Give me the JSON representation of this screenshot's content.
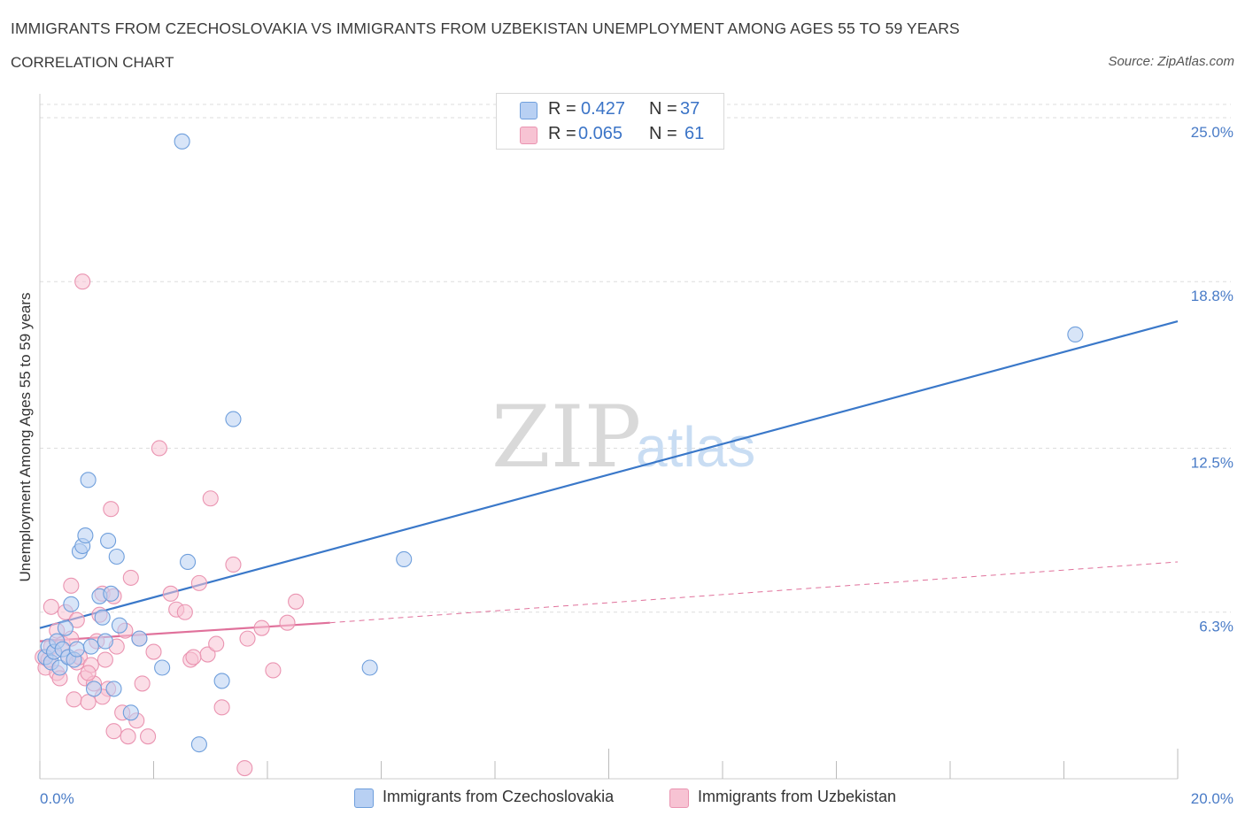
{
  "header": {
    "title": "IMMIGRANTS FROM CZECHOSLOVAKIA VS IMMIGRANTS FROM UZBEKISTAN UNEMPLOYMENT AMONG AGES 55 TO 59 YEARS",
    "subtitle": "CORRELATION CHART",
    "source": "Source: ZipAtlas.com"
  },
  "watermark": "ZIPatlas",
  "legend": {
    "r_label": "R =",
    "n_label": "N =",
    "series_a": {
      "r": "0.427",
      "n": "37"
    },
    "series_b": {
      "r": "0.065",
      "n": "61"
    }
  },
  "colors": {
    "series_a_fill": "#b8d0f3",
    "series_a_stroke": "#6f9fdc",
    "series_a_line": "#3a78c9",
    "series_b_fill": "#f7c3d3",
    "series_b_stroke": "#ea94b1",
    "series_b_line": "#e0719b",
    "grid": "#dddddd",
    "tick_text": "#4a7cc7"
  },
  "chart_data": {
    "type": "scatter",
    "title": "IMMIGRANTS FROM CZECHOSLOVAKIA VS IMMIGRANTS FROM UZBEKISTAN UNEMPLOYMENT AMONG AGES 55 TO 59 YEARS",
    "xlabel": "",
    "ylabel": "Unemployment Among Ages 55 to 59 years",
    "xlim": [
      0,
      20
    ],
    "ylim": [
      0,
      25.5
    ],
    "x_tick_labels": [
      "0.0%",
      "20.0%"
    ],
    "y_ticks": [
      6.3,
      12.5,
      18.8,
      25.0
    ],
    "y_tick_labels": [
      "6.3%",
      "12.5%",
      "18.8%",
      "25.0%"
    ],
    "grid": true,
    "legend_position": "top-center",
    "series": [
      {
        "name": "Immigrants from Czechoslovakia",
        "r": 0.427,
        "n": 37,
        "trend": {
          "x": [
            0,
            20
          ],
          "y": [
            5.7,
            17.3
          ],
          "style": "solid"
        },
        "points": [
          [
            0.1,
            4.6
          ],
          [
            0.15,
            5.0
          ],
          [
            0.2,
            4.4
          ],
          [
            0.25,
            4.8
          ],
          [
            0.3,
            5.2
          ],
          [
            0.35,
            4.2
          ],
          [
            0.4,
            4.9
          ],
          [
            0.45,
            5.7
          ],
          [
            0.5,
            4.6
          ],
          [
            0.55,
            6.6
          ],
          [
            0.6,
            4.5
          ],
          [
            0.65,
            4.9
          ],
          [
            0.7,
            8.6
          ],
          [
            0.75,
            8.8
          ],
          [
            0.8,
            9.2
          ],
          [
            0.85,
            11.3
          ],
          [
            0.9,
            5.0
          ],
          [
            0.95,
            3.4
          ],
          [
            1.05,
            6.9
          ],
          [
            1.1,
            6.1
          ],
          [
            1.15,
            5.2
          ],
          [
            1.2,
            9.0
          ],
          [
            1.25,
            7.0
          ],
          [
            1.3,
            3.4
          ],
          [
            1.35,
            8.4
          ],
          [
            1.4,
            5.8
          ],
          [
            1.6,
            2.5
          ],
          [
            1.75,
            5.3
          ],
          [
            2.15,
            4.2
          ],
          [
            2.5,
            24.1
          ],
          [
            2.6,
            8.2
          ],
          [
            2.8,
            1.3
          ],
          [
            3.2,
            3.7
          ],
          [
            3.4,
            13.6
          ],
          [
            5.8,
            4.2
          ],
          [
            6.4,
            8.3
          ],
          [
            18.2,
            16.8
          ]
        ]
      },
      {
        "name": "Immigrants from Uzbekistan",
        "r": 0.065,
        "n": 61,
        "trend": {
          "x": [
            0,
            5.1
          ],
          "y": [
            5.2,
            5.9
          ],
          "style": "solid",
          "extended_dashed_to": [
            20,
            8.2
          ]
        },
        "points": [
          [
            0.05,
            4.6
          ],
          [
            0.1,
            4.2
          ],
          [
            0.15,
            4.5
          ],
          [
            0.2,
            5.0
          ],
          [
            0.25,
            4.8
          ],
          [
            0.3,
            4.0
          ],
          [
            0.35,
            3.8
          ],
          [
            0.4,
            5.1
          ],
          [
            0.45,
            6.3
          ],
          [
            0.5,
            4.6
          ],
          [
            0.55,
            7.3
          ],
          [
            0.6,
            3.0
          ],
          [
            0.65,
            4.4
          ],
          [
            0.7,
            4.6
          ],
          [
            0.75,
            18.8
          ],
          [
            0.8,
            3.8
          ],
          [
            0.85,
            2.9
          ],
          [
            0.9,
            4.3
          ],
          [
            0.95,
            3.6
          ],
          [
            1.0,
            5.2
          ],
          [
            1.05,
            6.2
          ],
          [
            1.1,
            7.0
          ],
          [
            1.15,
            4.5
          ],
          [
            1.2,
            3.4
          ],
          [
            1.25,
            10.2
          ],
          [
            1.3,
            1.8
          ],
          [
            1.35,
            5.0
          ],
          [
            1.45,
            2.5
          ],
          [
            1.55,
            1.6
          ],
          [
            1.6,
            7.6
          ],
          [
            1.7,
            2.2
          ],
          [
            1.75,
            5.3
          ],
          [
            1.8,
            3.6
          ],
          [
            1.9,
            1.6
          ],
          [
            2.0,
            4.8
          ],
          [
            2.1,
            12.5
          ],
          [
            2.3,
            7.0
          ],
          [
            2.4,
            6.4
          ],
          [
            2.55,
            6.3
          ],
          [
            2.65,
            4.5
          ],
          [
            2.8,
            7.4
          ],
          [
            2.95,
            4.7
          ],
          [
            3.0,
            10.6
          ],
          [
            3.1,
            5.1
          ],
          [
            3.2,
            2.7
          ],
          [
            3.4,
            8.1
          ],
          [
            3.6,
            0.4
          ],
          [
            3.65,
            5.3
          ],
          [
            3.9,
            5.7
          ],
          [
            4.1,
            4.1
          ],
          [
            4.35,
            5.9
          ],
          [
            4.5,
            6.7
          ],
          [
            0.3,
            5.6
          ],
          [
            0.55,
            5.3
          ],
          [
            0.65,
            6.0
          ],
          [
            1.3,
            6.9
          ],
          [
            0.2,
            6.5
          ],
          [
            0.85,
            4.0
          ],
          [
            1.1,
            3.1
          ],
          [
            2.7,
            4.6
          ],
          [
            1.5,
            5.6
          ]
        ]
      }
    ]
  },
  "bottom_legend": {
    "series_a_label": "Immigrants from Czechoslovakia",
    "series_b_label": "Immigrants from Uzbekistan"
  }
}
